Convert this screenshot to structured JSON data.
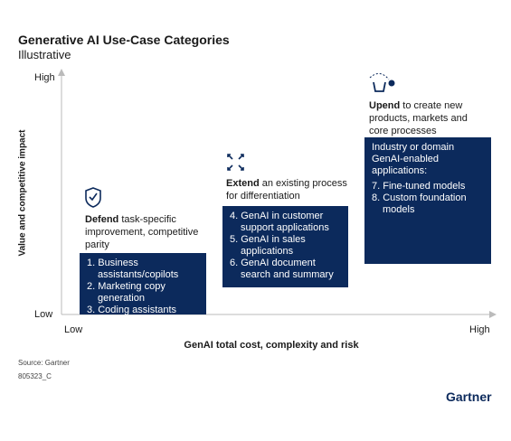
{
  "header": {
    "title": "Generative AI Use-Case Categories",
    "subtitle": "Illustrative"
  },
  "y_axis": {
    "label": "Value and competitive impact",
    "high": "High",
    "low": "Low"
  },
  "x_axis": {
    "label": "GenAI total cost,  complexity and risk",
    "low": "Low",
    "high": "High"
  },
  "categories": [
    {
      "keyword": "Defend",
      "description": " task-specific improvement, competitive parity",
      "items": [
        "1. Business assistants/copilots",
        "2. Marketing copy generation",
        "3. Coding assistants"
      ]
    },
    {
      "keyword": "Extend",
      "description": " an existing process for differentiation",
      "items": [
        "4. GenAI in customer support applications",
        "5. GenAI in sales applications",
        "6. GenAI document search and summary"
      ]
    },
    {
      "keyword": "Upend",
      "description": " to create new products, markets and core processes",
      "box_heading": "Industry or domain GenAI-enabled applications:",
      "items": [
        "7. Fine-tuned models",
        "8. Custom foundation models"
      ]
    }
  ],
  "footer": {
    "source": "Source: Gartner",
    "id": "805323_C",
    "brand": "Gartner"
  }
}
